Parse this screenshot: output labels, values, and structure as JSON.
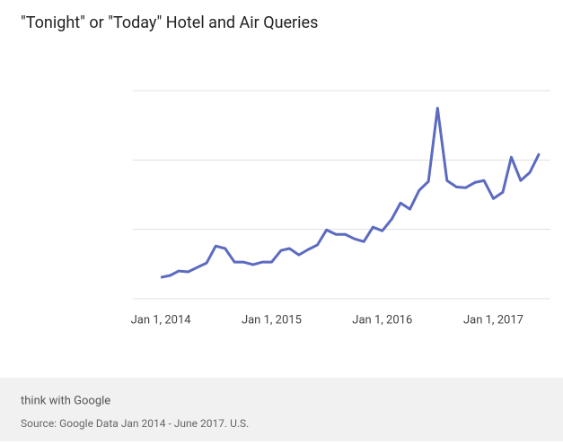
{
  "chart_data": {
    "type": "line",
    "title": "\"Tonight\" or \"Today\" Hotel and Air Queries",
    "x": [
      "2014-01-01",
      "2014-02-01",
      "2014-03-01",
      "2014-04-01",
      "2014-05-01",
      "2014-06-01",
      "2014-07-01",
      "2014-08-01",
      "2014-09-01",
      "2014-10-01",
      "2014-11-01",
      "2014-12-01",
      "2015-01-01",
      "2015-02-01",
      "2015-03-01",
      "2015-04-01",
      "2015-05-01",
      "2015-06-01",
      "2015-07-01",
      "2015-08-01",
      "2015-09-01",
      "2015-10-01",
      "2015-11-01",
      "2015-12-01",
      "2016-01-01",
      "2016-02-01",
      "2016-03-01",
      "2016-04-01",
      "2016-05-01",
      "2016-06-01",
      "2016-07-01",
      "2016-08-01",
      "2016-09-01",
      "2016-10-01",
      "2016-11-01",
      "2016-12-01",
      "2017-01-01",
      "2017-02-01",
      "2017-03-01",
      "2017-04-01",
      "2017-05-01",
      "2017-06-01"
    ],
    "series": [
      {
        "color": "#5c6bc0",
        "values": [
          7.7,
          8.4,
          10.0,
          9.7,
          11.3,
          12.9,
          19.0,
          18.1,
          13.2,
          13.2,
          12.3,
          13.2,
          13.2,
          17.4,
          18.1,
          15.8,
          17.7,
          19.4,
          24.8,
          23.2,
          23.2,
          21.6,
          20.6,
          25.8,
          24.5,
          28.7,
          34.5,
          32.3,
          39.0,
          42.3,
          68.7,
          42.6,
          40.3,
          40.0,
          41.9,
          42.6,
          36.1,
          38.4,
          51.0,
          42.6,
          45.5,
          52.3
        ]
      }
    ],
    "xlim": [
      "2013-10-01",
      "2017-07-08"
    ],
    "xticks": [
      {
        "value": "2014-01-01",
        "label": "Jan 1, 2014"
      },
      {
        "value": "2015-01-01",
        "label": "Jan 1, 2015"
      },
      {
        "value": "2016-01-01",
        "label": "Jan 1, 2016"
      },
      {
        "value": "2017-01-01",
        "label": "Jan 1, 2017"
      }
    ],
    "ylim": [
      0,
      75
    ],
    "yticks": [
      0,
      25,
      50,
      75
    ],
    "grid": true
  },
  "footer": {
    "brand": "think with Google",
    "source": "Source: Google Data Jan 2014 - June 2017. U.S."
  }
}
